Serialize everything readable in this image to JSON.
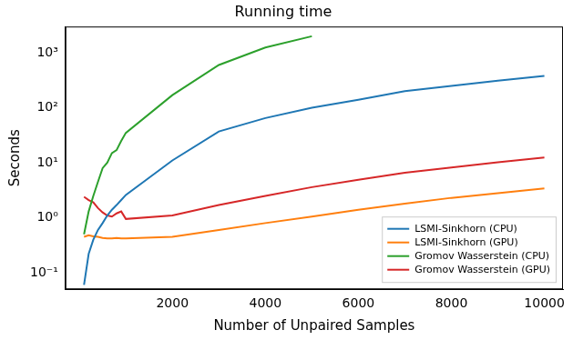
{
  "chart_data": {
    "type": "line",
    "title": "Running time",
    "x_label": "Number of Unpaired Samples",
    "y_label": "Seconds",
    "x": [
      100,
      200,
      300,
      400,
      500,
      600,
      700,
      800,
      900,
      1000,
      2000,
      3000,
      4000,
      5000,
      6000,
      7000,
      8000,
      9000,
      10000
    ],
    "series": [
      {
        "name": "LSMI-Sinkhorn (CPU)",
        "color": "#1f77b4",
        "values": [
          0.06,
          0.22,
          0.4,
          0.6,
          0.8,
          1.1,
          1.4,
          1.7,
          2.1,
          2.6,
          11,
          37,
          65,
          100,
          140,
          200,
          250,
          310,
          380
        ]
      },
      {
        "name": "LSMI-Sinkhorn (GPU)",
        "color": "#ff7f0e",
        "values": [
          0.45,
          0.48,
          0.46,
          0.45,
          0.43,
          0.42,
          0.42,
          0.43,
          0.42,
          0.42,
          0.45,
          0.6,
          0.8,
          1.05,
          1.4,
          1.8,
          2.3,
          2.8,
          3.4
        ]
      },
      {
        "name": "Gromov Wasserstein (CPU)",
        "color": "#2ca02c",
        "values": [
          0.5,
          1.3,
          2.5,
          4.5,
          8,
          10,
          15,
          17,
          25,
          35,
          170,
          600,
          1250,
          2000,
          null,
          null,
          null,
          null,
          null
        ]
      },
      {
        "name": "Gromov Wasserstein (GPU)",
        "color": "#d62728",
        "values": [
          2.4,
          2.1,
          1.9,
          1.5,
          1.25,
          1.1,
          1.05,
          1.2,
          1.3,
          0.95,
          1.1,
          1.7,
          2.5,
          3.6,
          4.9,
          6.6,
          8.2,
          10.2,
          12.5
        ]
      }
    ],
    "xlim": [
      -300,
      10400
    ],
    "xticks": [
      2000,
      4000,
      6000,
      8000,
      10000
    ],
    "ylim": [
      0.05,
      3000
    ],
    "yticks": [
      {
        "value": 0.1,
        "label": "10⁻¹"
      },
      {
        "value": 1,
        "label": "10⁰"
      },
      {
        "value": 10,
        "label": "10¹"
      },
      {
        "value": 100,
        "label": "10²"
      },
      {
        "value": 1000,
        "label": "10³"
      }
    ],
    "log": "y",
    "grid": false,
    "legend": "lower right"
  }
}
